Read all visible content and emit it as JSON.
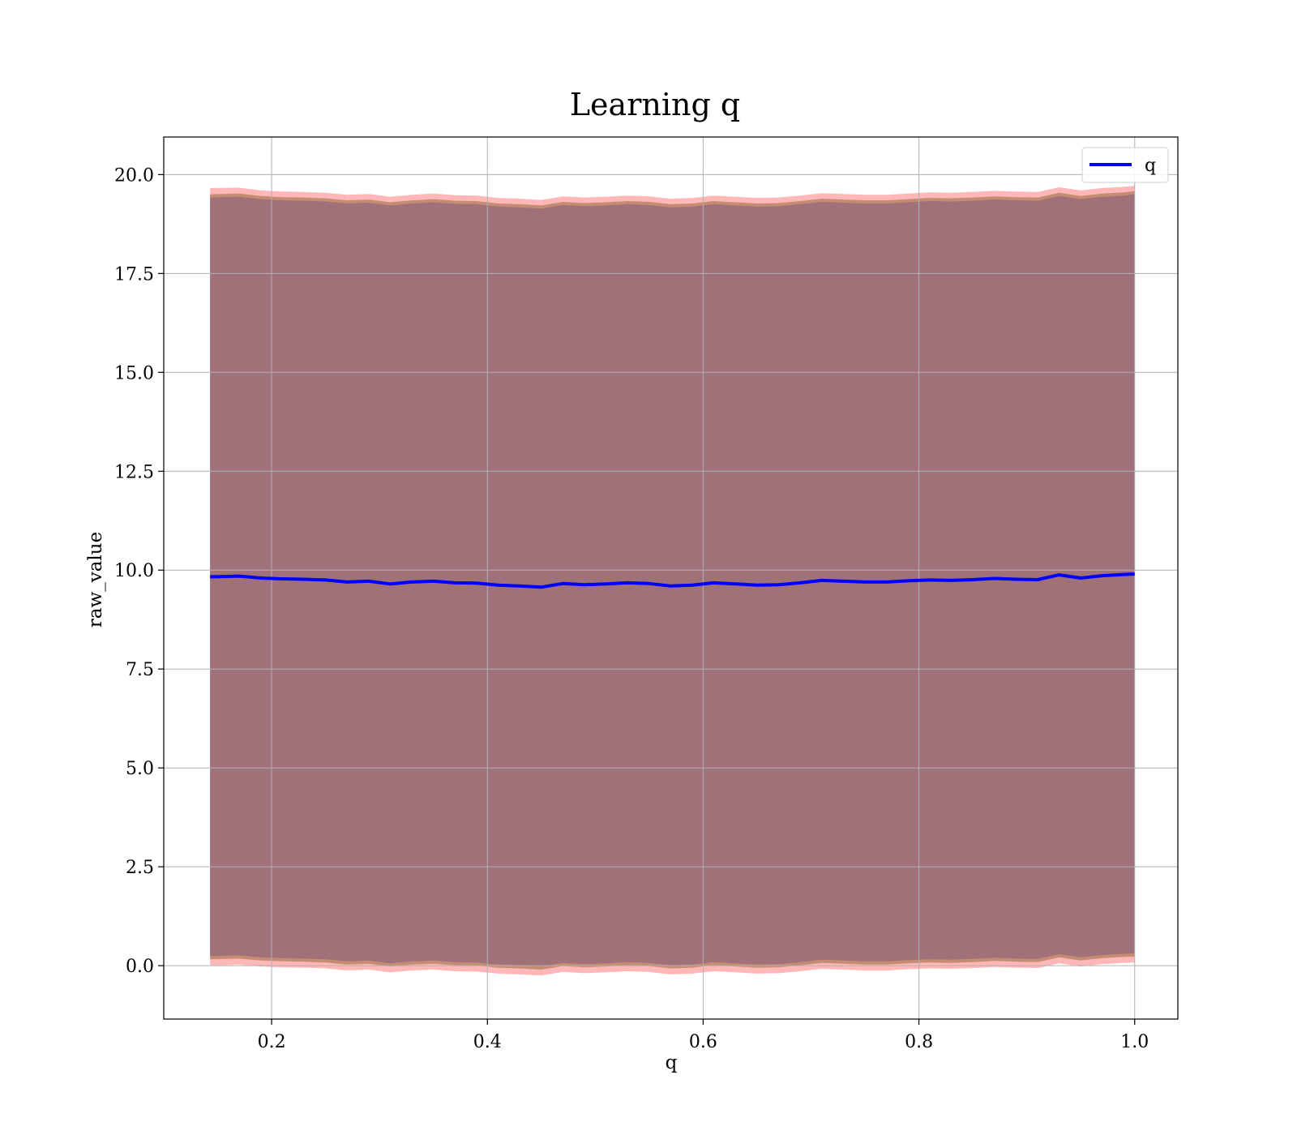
{
  "chart_data": {
    "type": "line",
    "title": "Learning q",
    "xlabel": "q",
    "ylabel": "raw_value",
    "xlim": [
      0.1,
      1.04
    ],
    "ylim": [
      -1.35,
      20.95
    ],
    "xticks": [
      0.2,
      0.4,
      0.6,
      0.8,
      1.0
    ],
    "xtick_labels": [
      "0.2",
      "0.4",
      "0.6",
      "0.8",
      "1.0"
    ],
    "yticks": [
      0.0,
      2.5,
      5.0,
      7.5,
      10.0,
      12.5,
      15.0,
      17.5,
      20.0
    ],
    "ytick_labels": [
      "0.0",
      "2.5",
      "5.0",
      "7.5",
      "10.0",
      "12.5",
      "15.0",
      "17.5",
      "20.0"
    ],
    "grid": true,
    "legend_position": "upper right",
    "series": [
      {
        "name": "q",
        "color": "#0000ff",
        "x": [
          0.143,
          0.17,
          0.19,
          0.21,
          0.23,
          0.25,
          0.27,
          0.29,
          0.31,
          0.33,
          0.35,
          0.37,
          0.39,
          0.41,
          0.43,
          0.45,
          0.47,
          0.49,
          0.51,
          0.53,
          0.55,
          0.57,
          0.59,
          0.61,
          0.63,
          0.65,
          0.67,
          0.69,
          0.71,
          0.73,
          0.75,
          0.77,
          0.79,
          0.81,
          0.83,
          0.85,
          0.87,
          0.89,
          0.91,
          0.93,
          0.95,
          0.97,
          0.99,
          1.0
        ],
        "y": [
          9.83,
          9.85,
          9.8,
          9.78,
          9.77,
          9.75,
          9.7,
          9.72,
          9.65,
          9.7,
          9.72,
          9.68,
          9.67,
          9.62,
          9.6,
          9.57,
          9.66,
          9.63,
          9.65,
          9.68,
          9.66,
          9.6,
          9.62,
          9.68,
          9.65,
          9.62,
          9.63,
          9.68,
          9.74,
          9.72,
          9.7,
          9.7,
          9.73,
          9.75,
          9.74,
          9.76,
          9.79,
          9.77,
          9.76,
          9.88,
          9.8,
          9.86,
          9.89,
          9.9
        ]
      }
    ],
    "bands": [
      {
        "color": "#ff9999",
        "opacity": 0.7,
        "upper": [
          19.66,
          19.67,
          19.6,
          19.57,
          19.56,
          19.54,
          19.49,
          19.51,
          19.44,
          19.49,
          19.52,
          19.48,
          19.47,
          19.41,
          19.39,
          19.36,
          19.45,
          19.42,
          19.44,
          19.47,
          19.45,
          19.39,
          19.41,
          19.47,
          19.44,
          19.41,
          19.42,
          19.47,
          19.53,
          19.51,
          19.49,
          19.49,
          19.52,
          19.55,
          19.54,
          19.56,
          19.59,
          19.57,
          19.56,
          19.68,
          19.6,
          19.66,
          19.69,
          19.72
        ],
        "lower": [
          0.0,
          0.03,
          -0.02,
          -0.04,
          -0.05,
          -0.07,
          -0.12,
          -0.1,
          -0.17,
          -0.12,
          -0.1,
          -0.14,
          -0.15,
          -0.2,
          -0.22,
          -0.25,
          -0.16,
          -0.19,
          -0.17,
          -0.14,
          -0.16,
          -0.22,
          -0.2,
          -0.14,
          -0.17,
          -0.2,
          -0.19,
          -0.14,
          -0.08,
          -0.1,
          -0.12,
          -0.12,
          -0.09,
          -0.07,
          -0.08,
          -0.06,
          -0.03,
          -0.05,
          -0.06,
          0.06,
          -0.02,
          0.04,
          0.07,
          0.08
        ]
      },
      {
        "color": "#b07d5c",
        "opacity": 0.75,
        "upper": [
          19.5,
          19.52,
          19.46,
          19.43,
          19.42,
          19.4,
          19.35,
          19.37,
          19.3,
          19.35,
          19.38,
          19.34,
          19.33,
          19.27,
          19.25,
          19.22,
          19.31,
          19.28,
          19.3,
          19.33,
          19.31,
          19.25,
          19.27,
          19.33,
          19.3,
          19.27,
          19.28,
          19.33,
          19.39,
          19.37,
          19.35,
          19.35,
          19.38,
          19.41,
          19.4,
          19.42,
          19.45,
          19.43,
          19.42,
          19.54,
          19.46,
          19.52,
          19.55,
          19.58
        ],
        "lower": [
          0.16,
          0.18,
          0.13,
          0.11,
          0.1,
          0.08,
          0.03,
          0.05,
          -0.02,
          0.03,
          0.05,
          0.01,
          0.0,
          -0.05,
          -0.07,
          -0.1,
          -0.01,
          -0.04,
          -0.02,
          0.01,
          -0.01,
          -0.07,
          -0.05,
          0.01,
          -0.02,
          -0.05,
          -0.04,
          0.01,
          0.07,
          0.05,
          0.03,
          0.03,
          0.06,
          0.08,
          0.07,
          0.09,
          0.12,
          0.1,
          0.09,
          0.21,
          0.13,
          0.19,
          0.22,
          0.23
        ]
      },
      {
        "color": "#a1717a",
        "opacity": 1.0,
        "upper": [
          19.42,
          19.44,
          19.38,
          19.35,
          19.34,
          19.32,
          19.27,
          19.29,
          19.22,
          19.27,
          19.3,
          19.26,
          19.25,
          19.19,
          19.17,
          19.14,
          19.23,
          19.2,
          19.22,
          19.25,
          19.23,
          19.17,
          19.19,
          19.25,
          19.22,
          19.19,
          19.2,
          19.25,
          19.31,
          19.29,
          19.27,
          19.27,
          19.3,
          19.33,
          19.32,
          19.34,
          19.37,
          19.35,
          19.34,
          19.46,
          19.38,
          19.44,
          19.47,
          19.5
        ],
        "lower": [
          0.24,
          0.26,
          0.21,
          0.19,
          0.18,
          0.16,
          0.11,
          0.13,
          0.06,
          0.11,
          0.13,
          0.09,
          0.08,
          0.03,
          0.01,
          -0.02,
          0.07,
          0.04,
          0.06,
          0.09,
          0.07,
          0.01,
          0.03,
          0.09,
          0.06,
          0.03,
          0.04,
          0.09,
          0.15,
          0.13,
          0.11,
          0.11,
          0.14,
          0.16,
          0.15,
          0.17,
          0.2,
          0.18,
          0.17,
          0.29,
          0.21,
          0.27,
          0.3,
          0.31
        ]
      }
    ]
  }
}
